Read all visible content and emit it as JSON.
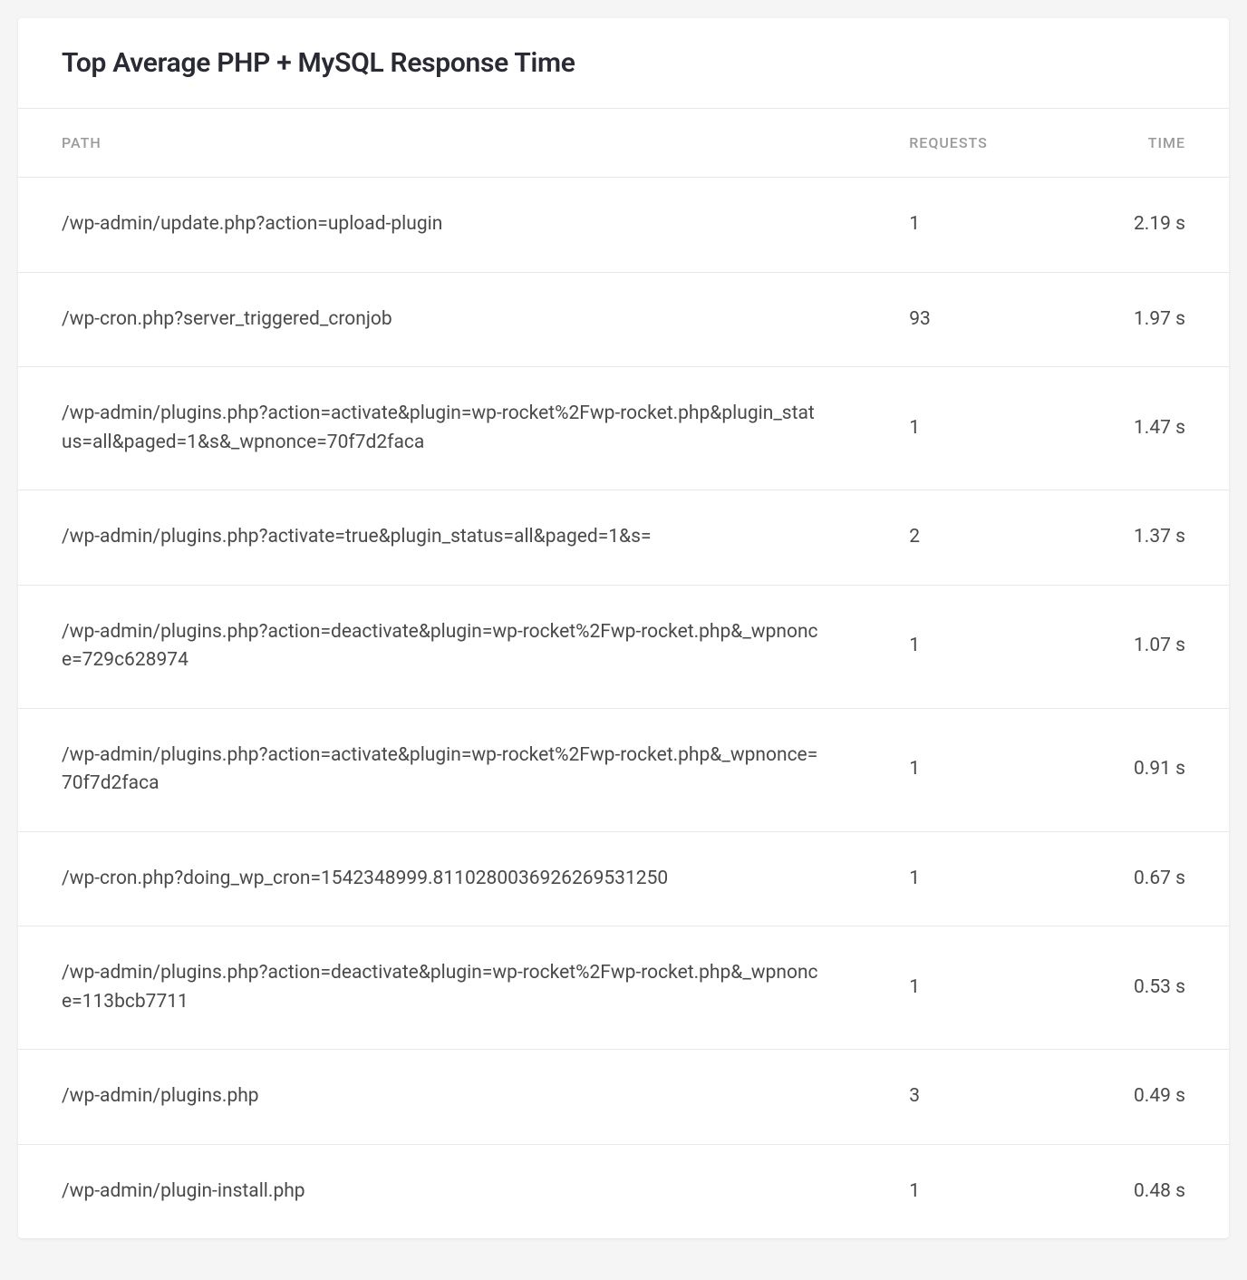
{
  "card": {
    "title": "Top Average PHP + MySQL Response Time"
  },
  "table": {
    "columns": {
      "path": "PATH",
      "requests": "REQUESTS",
      "time": "TIME"
    },
    "rows": [
      {
        "path": "/wp-admin/update.php?action=upload-plugin",
        "requests": "1",
        "time": "2.19 s"
      },
      {
        "path": "/wp-cron.php?server_triggered_cronjob",
        "requests": "93",
        "time": "1.97 s"
      },
      {
        "path": "/wp-admin/plugins.php?action=activate&plugin=wp-rocket%2Fwp-rocket.php&plugin_status=all&paged=1&s&_wpnonce=70f7d2faca",
        "requests": "1",
        "time": "1.47 s"
      },
      {
        "path": "/wp-admin/plugins.php?activate=true&plugin_status=all&paged=1&s=",
        "requests": "2",
        "time": "1.37 s"
      },
      {
        "path": "/wp-admin/plugins.php?action=deactivate&plugin=wp-rocket%2Fwp-rocket.php&_wpnonce=729c628974",
        "requests": "1",
        "time": "1.07 s"
      },
      {
        "path": "/wp-admin/plugins.php?action=activate&plugin=wp-rocket%2Fwp-rocket.php&_wpnonce=70f7d2faca",
        "requests": "1",
        "time": "0.91 s"
      },
      {
        "path": "/wp-cron.php?doing_wp_cron=1542348999.8110280036926269531250",
        "requests": "1",
        "time": "0.67 s"
      },
      {
        "path": "/wp-admin/plugins.php?action=deactivate&plugin=wp-rocket%2Fwp-rocket.php&_wpnonce=113bcb7711",
        "requests": "1",
        "time": "0.53 s"
      },
      {
        "path": "/wp-admin/plugins.php",
        "requests": "3",
        "time": "0.49 s"
      },
      {
        "path": "/wp-admin/plugin-install.php",
        "requests": "1",
        "time": "0.48 s"
      }
    ]
  },
  "style": {
    "background_color": "#f5f5f5",
    "card_background": "#ffffff",
    "border_color": "#e8e8e8",
    "title_color": "#2a2a35",
    "header_text_color": "#9a9a9a",
    "cell_text_color": "#4a4a4a",
    "title_fontsize": 30,
    "header_fontsize": 16,
    "cell_fontsize": 21
  }
}
